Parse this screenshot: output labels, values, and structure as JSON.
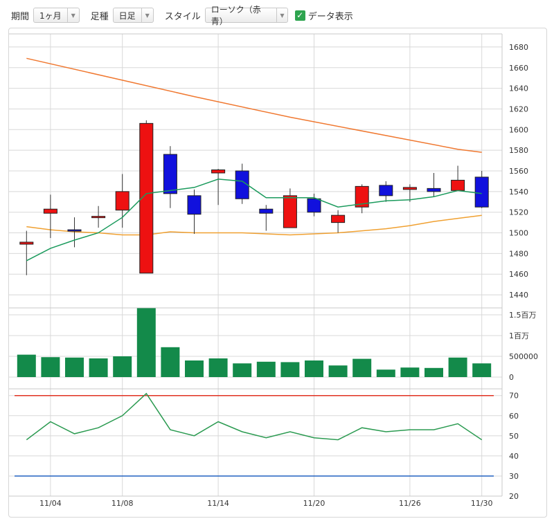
{
  "toolbar": {
    "period_label": "期間",
    "period_value": "1ヶ月",
    "type_label": "足種",
    "type_value": "日足",
    "style_label": "スタイル",
    "style_value": "ローソク（赤青）",
    "show_data_label": "データ表示",
    "show_data_checked": true
  },
  "colors": {
    "up": "#ee1111",
    "down": "#1111dd",
    "ma_short": "#1a9a5c",
    "ma_mid": "#f07830",
    "ma_long": "#f0a030",
    "volume": "#138a4a",
    "rsi": "#2a9a50",
    "rsi_upper": "#e03020",
    "rsi_lower": "#2060c0",
    "grid": "#d8d8d8"
  },
  "chart_data": {
    "type": "candlestick",
    "x_tick_labels": [
      "11/04",
      "11/08",
      "11/14",
      "11/20",
      "11/26",
      "11/30"
    ],
    "x_tick_indices": [
      1,
      4,
      8,
      12,
      16,
      19
    ],
    "price_axis": {
      "ylim": [
        1430,
        1690
      ],
      "ticks": [
        1440,
        1460,
        1480,
        1500,
        1520,
        1540,
        1560,
        1580,
        1600,
        1620,
        1640,
        1660,
        1680
      ]
    },
    "candles": [
      {
        "o": 1489,
        "h": 1502,
        "l": 1459,
        "c": 1491
      },
      {
        "o": 1519,
        "h": 1537,
        "l": 1495,
        "c": 1523
      },
      {
        "o": 1503,
        "h": 1515,
        "l": 1486,
        "c": 1502
      },
      {
        "o": 1516,
        "h": 1526,
        "l": 1505,
        "c": 1516
      },
      {
        "o": 1522,
        "h": 1557,
        "l": 1505,
        "c": 1540
      },
      {
        "o": 1461,
        "h": 1609,
        "l": 1461,
        "c": 1606
      },
      {
        "o": 1576,
        "h": 1584,
        "l": 1524,
        "c": 1538
      },
      {
        "o": 1536,
        "h": 1542,
        "l": 1499,
        "c": 1518
      },
      {
        "o": 1558,
        "h": 1562,
        "l": 1527,
        "c": 1561
      },
      {
        "o": 1560,
        "h": 1567,
        "l": 1528,
        "c": 1533
      },
      {
        "o": 1523,
        "h": 1527,
        "l": 1502,
        "c": 1519
      },
      {
        "o": 1505,
        "h": 1543,
        "l": 1505,
        "c": 1536
      },
      {
        "o": 1533,
        "h": 1538,
        "l": 1516,
        "c": 1520
      },
      {
        "o": 1510,
        "h": 1522,
        "l": 1500,
        "c": 1517
      },
      {
        "o": 1525,
        "h": 1547,
        "l": 1519,
        "c": 1545
      },
      {
        "o": 1546,
        "h": 1550,
        "l": 1530,
        "c": 1536
      },
      {
        "o": 1542,
        "h": 1547,
        "l": 1530,
        "c": 1544
      },
      {
        "o": 1543,
        "h": 1558,
        "l": 1535,
        "c": 1540
      },
      {
        "o": 1541,
        "h": 1565,
        "l": 1541,
        "c": 1551
      },
      {
        "o": 1554,
        "h": 1560,
        "l": 1524,
        "c": 1525
      }
    ],
    "ma_short": [
      1473,
      1485,
      1493,
      1500,
      1515,
      1538,
      1541,
      1544,
      1552,
      1550,
      1534,
      1534,
      1534,
      1525,
      1528,
      1531,
      1532,
      1535,
      1541,
      1538
    ],
    "ma_mid": [
      1669,
      null,
      null,
      null,
      null,
      null,
      null,
      1632,
      null,
      null,
      null,
      1612,
      null,
      null,
      null,
      null,
      null,
      null,
      1581,
      1578
    ],
    "ma_long": [
      1506,
      1503,
      1501,
      1500,
      1498,
      1498,
      1501,
      1500,
      1500,
      1500,
      1499,
      1498,
      1499,
      1500,
      1502,
      1504,
      1507,
      1511,
      1514,
      1517
    ],
    "volume_axis": {
      "ylim": [
        0,
        1650000
      ],
      "ticks": [
        0,
        500000,
        1000000,
        1500000
      ],
      "tick_labels": [
        "0",
        "500000",
        "1百万",
        "1.5百万"
      ]
    },
    "volume": [
      540000,
      480000,
      470000,
      450000,
      500000,
      1660000,
      720000,
      400000,
      450000,
      330000,
      370000,
      360000,
      400000,
      280000,
      440000,
      180000,
      230000,
      220000,
      470000,
      330000
    ],
    "rsi_axis": {
      "ylim": [
        20,
        73
      ],
      "ticks": [
        20,
        30,
        40,
        50,
        60,
        70
      ]
    },
    "rsi": [
      48,
      57,
      51,
      54,
      60,
      71,
      53,
      50,
      57,
      52,
      49,
      52,
      49,
      48,
      54,
      52,
      53,
      53,
      56,
      48
    ],
    "rsi_upper": 70,
    "rsi_lower": 30
  }
}
